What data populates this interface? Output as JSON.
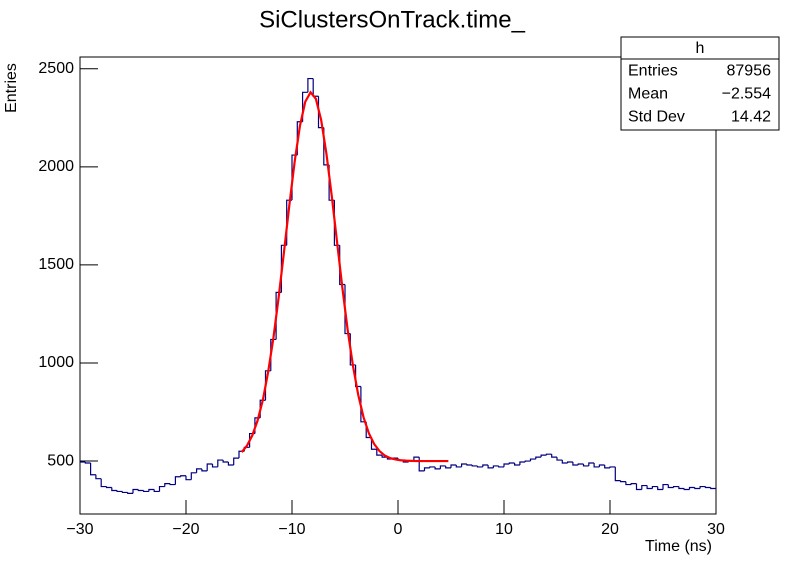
{
  "chart_data": {
    "type": "histogram",
    "title": "SiClustersOnTrack.time_",
    "x_label": "Time (ns)",
    "y_label": "Entries",
    "bins": [
      -30,
      -29.5,
      -29,
      -28.5,
      -28,
      -27.5,
      -27,
      -26.5,
      -26,
      -25.5,
      -25,
      -24.5,
      -24,
      -23.5,
      -23,
      -22.5,
      -22,
      -21.5,
      -21,
      -20.5,
      -20,
      -19.5,
      -19,
      -18.5,
      -18,
      -17.5,
      -17,
      -16.5,
      -16,
      -15.5,
      -15,
      -14.5,
      -14,
      -13.5,
      -13,
      -12.5,
      -12,
      -11.5,
      -11,
      -10.5,
      -10,
      -9.5,
      -9,
      -8.5,
      -8,
      -7.5,
      -7,
      -6.5,
      -6,
      -5.5,
      -5,
      -4.5,
      -4,
      -3.5,
      -3,
      -2.5,
      -2,
      -1.5,
      -1,
      -0.5,
      0,
      0.5,
      1,
      1.5,
      2,
      2.5,
      3,
      3.5,
      4,
      4.5,
      5,
      5.5,
      6,
      6.5,
      7,
      7.5,
      8,
      8.5,
      9,
      9.5,
      10,
      10.5,
      11,
      11.5,
      12,
      12.5,
      13,
      13.5,
      14,
      14.5,
      15,
      15.5,
      16,
      16.5,
      17,
      17.5,
      18,
      18.5,
      19,
      19.5,
      20,
      20.5,
      21,
      21.5,
      22,
      22.5,
      23,
      23.5,
      24,
      24.5,
      25,
      25.5,
      26,
      26.5,
      27,
      27.5,
      28,
      28.5,
      29,
      29.5,
      30
    ],
    "values": [
      495,
      490,
      430,
      410,
      370,
      365,
      350,
      345,
      340,
      335,
      355,
      350,
      345,
      355,
      345,
      370,
      385,
      380,
      420,
      425,
      405,
      440,
      460,
      450,
      485,
      470,
      505,
      495,
      480,
      515,
      550,
      570,
      640,
      720,
      810,
      960,
      1120,
      1360,
      1600,
      1830,
      2060,
      2230,
      2380,
      2450,
      2360,
      2200,
      2010,
      1830,
      1600,
      1400,
      1150,
      990,
      880,
      700,
      620,
      560,
      530,
      520,
      510,
      515,
      505,
      495,
      500,
      520,
      450,
      465,
      470,
      460,
      475,
      465,
      480,
      470,
      485,
      480,
      475,
      470,
      480,
      465,
      475,
      470,
      485,
      490,
      480,
      495,
      500,
      510,
      520,
      530,
      535,
      520,
      505,
      490,
      495,
      480,
      485,
      475,
      490,
      470,
      480,
      465,
      470,
      400,
      395,
      380,
      385,
      355,
      375,
      360,
      370,
      355,
      380,
      365,
      370,
      360,
      355,
      365,
      360,
      370,
      365,
      360
    ],
    "color": "#000080",
    "fit": {
      "color": "#ff0000",
      "x": [
        -14.75,
        -14.25,
        -13.75,
        -13.25,
        -12.75,
        -12.25,
        -11.75,
        -11.25,
        -10.75,
        -10.25,
        -9.75,
        -9.25,
        -8.75,
        -8.25,
        -7.75,
        -7.25,
        -6.75,
        -6.25,
        -5.75,
        -5.25,
        -4.75,
        -4.25,
        -3.75,
        -3.25,
        -2.75,
        -2.25,
        -1.75,
        -1.25,
        -0.75,
        -0.25,
        0.25,
        0.75,
        1.25,
        1.75,
        2.25,
        2.75,
        3.25,
        3.75,
        4.25,
        4.75
      ],
      "values": [
        545,
        578,
        630,
        706,
        811,
        954,
        1129,
        1339,
        1569,
        1805,
        2026,
        2209,
        2332,
        2380,
        2347,
        2239,
        2066,
        1852,
        1617,
        1384,
        1169,
        986,
        837,
        723,
        642,
        587,
        551,
        528,
        515,
        508,
        504,
        502,
        501,
        500,
        500,
        500,
        500,
        500,
        500,
        500
      ]
    },
    "xlim": [
      -30,
      30
    ],
    "xticks": [
      {
        "value": -30,
        "label": "−30"
      },
      {
        "value": -20,
        "label": "−20"
      },
      {
        "value": -10,
        "label": "−10"
      },
      0,
      10,
      20,
      30
    ],
    "ylim": [
      230,
      2560
    ],
    "yticks": [
      500,
      1000,
      1500,
      2000,
      2500
    ],
    "stats": {
      "title": "h",
      "rows": [
        [
          "Entries",
          "87956"
        ],
        [
          "Mean",
          "−2.554"
        ],
        [
          "Std Dev",
          "14.42"
        ]
      ]
    }
  }
}
